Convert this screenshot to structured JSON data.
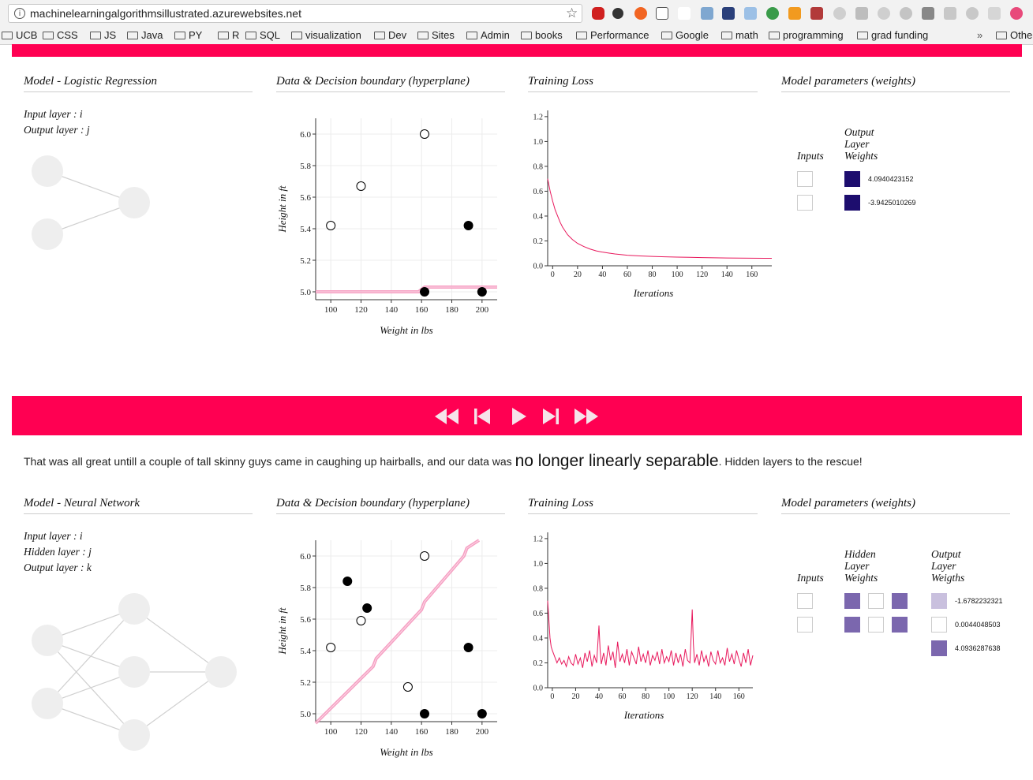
{
  "browser": {
    "url": "machinelearningalgorithmsillustrated.azurewebsites.net",
    "bookmarks": [
      "UCB",
      "CSS",
      "JS",
      "Java",
      "PY",
      "R",
      "SQL",
      "visualization",
      "Dev",
      "Sites",
      "Admin",
      "books",
      "Performance",
      "Google",
      "math",
      "programming",
      "grad funding"
    ],
    "bookmarks_overflow": "»",
    "other_bookmarks": "Other"
  },
  "section1": {
    "model_title": "Model - Logistic Regression",
    "boundary_title": "Data & Decision boundary (hyperplane)",
    "loss_title": "Training Loss",
    "params_title": "Model parameters (weights)",
    "layers": [
      "Input layer : i",
      "Output layer : j"
    ],
    "params": {
      "inputs_label": "Inputs",
      "output_label": [
        "Output",
        "Layer",
        "Weights"
      ],
      "weights": [
        "4.0940423152",
        "-3.9425010269"
      ]
    },
    "scatter_chart": {
      "type": "scatter",
      "xlabel": "Weight in lbs",
      "ylabel": "Height in ft",
      "xlim": [
        90,
        210
      ],
      "ylim": [
        4.95,
        6.1
      ],
      "x_ticks": [
        "100",
        "120",
        "140",
        "160",
        "180",
        "200"
      ],
      "y_ticks": [
        "5.0",
        "5.2",
        "5.4",
        "5.6",
        "5.8",
        "6.0"
      ],
      "points": [
        {
          "x": 100,
          "y": 5.42,
          "class": "open"
        },
        {
          "x": 120,
          "y": 5.67,
          "class": "open"
        },
        {
          "x": 162,
          "y": 6.0,
          "class": "open"
        },
        {
          "x": 191,
          "y": 5.42,
          "class": "filled"
        },
        {
          "x": 162,
          "y": 5.0,
          "class": "filled"
        },
        {
          "x": 200,
          "y": 5.0,
          "class": "filled"
        }
      ],
      "boundary": [
        [
          90,
          5.0
        ],
        [
          158,
          5.0
        ],
        [
          162,
          5.03
        ],
        [
          210,
          5.03
        ]
      ]
    },
    "loss_chart": {
      "type": "line",
      "xlabel": "Iterations",
      "xlim": [
        -4,
        176
      ],
      "ylim": [
        0,
        1.25
      ],
      "x_ticks": [
        "0",
        "20",
        "40",
        "60",
        "80",
        "100",
        "120",
        "140",
        "160"
      ],
      "y_ticks": [
        "0.0",
        "0.2",
        "0.4",
        "0.6",
        "0.8",
        "1.0",
        "1.2"
      ],
      "x": [
        -4,
        -2,
        0,
        2,
        4,
        6,
        8,
        10,
        12,
        14,
        16,
        18,
        20,
        25,
        30,
        35,
        40,
        45,
        50,
        60,
        70,
        80,
        90,
        100,
        110,
        120,
        130,
        140,
        150,
        160,
        170,
        176
      ],
      "y": [
        0.7,
        0.6,
        0.52,
        0.45,
        0.4,
        0.35,
        0.31,
        0.28,
        0.25,
        0.23,
        0.21,
        0.195,
        0.18,
        0.155,
        0.135,
        0.12,
        0.11,
        0.102,
        0.095,
        0.085,
        0.079,
        0.075,
        0.072,
        0.07,
        0.068,
        0.066,
        0.064,
        0.063,
        0.062,
        0.061,
        0.06,
        0.06
      ]
    }
  },
  "controls": {
    "rewind": "rewind",
    "step_back": "step-back",
    "play": "play",
    "step_forward": "step-forward",
    "fast_forward": "fast-forward"
  },
  "narrative": {
    "before": "That was all great untill a couple of tall skinny guys came in caughing up hairballs, and our data was ",
    "emphasis": "no longer linearly separable",
    "after": ". Hidden layers to the rescue!"
  },
  "section2": {
    "model_title": "Model - Neural Network",
    "boundary_title": "Data & Decision boundary (hyperplane)",
    "loss_title": "Training Loss",
    "params_title": "Model parameters (weights)",
    "layers": [
      "Input layer : i",
      "Hidden layer : j",
      "Output layer : k"
    ],
    "params": {
      "inputs_label": "Inputs",
      "hidden_label": [
        "Hidden",
        "Layer",
        "Weights"
      ],
      "output_label": [
        "Output",
        "Layer",
        "Weigths"
      ],
      "weights": [
        "-1.6782232321",
        "0.0044048503",
        "4.0936287638"
      ]
    },
    "scatter_chart": {
      "type": "scatter",
      "xlabel": "Weight in lbs",
      "ylabel": "Height in ft",
      "xlim": [
        90,
        210
      ],
      "ylim": [
        4.95,
        6.1
      ],
      "x_ticks": [
        "100",
        "120",
        "140",
        "160",
        "180",
        "200"
      ],
      "y_ticks": [
        "5.0",
        "5.2",
        "5.4",
        "5.6",
        "5.8",
        "6.0"
      ],
      "points": [
        {
          "x": 100,
          "y": 5.42,
          "class": "open"
        },
        {
          "x": 120,
          "y": 5.59,
          "class": "open"
        },
        {
          "x": 162,
          "y": 6.0,
          "class": "open"
        },
        {
          "x": 151,
          "y": 5.17,
          "class": "open"
        },
        {
          "x": 111,
          "y": 5.84,
          "class": "filled"
        },
        {
          "x": 124,
          "y": 5.67,
          "class": "filled"
        },
        {
          "x": 191,
          "y": 5.42,
          "class": "filled"
        },
        {
          "x": 162,
          "y": 5.0,
          "class": "filled"
        },
        {
          "x": 200,
          "y": 5.0,
          "class": "filled"
        }
      ],
      "boundary": [
        [
          90,
          4.94
        ],
        [
          128,
          5.3
        ],
        [
          130,
          5.35
        ],
        [
          160,
          5.66
        ],
        [
          162,
          5.71
        ],
        [
          188,
          6.0
        ],
        [
          190,
          6.05
        ],
        [
          198,
          6.1
        ]
      ]
    },
    "loss_chart": {
      "type": "line",
      "xlabel": "Iterations",
      "xlim": [
        -4,
        172
      ],
      "ylim": [
        0,
        1.25
      ],
      "x_ticks": [
        "0",
        "20",
        "40",
        "60",
        "80",
        "100",
        "120",
        "140",
        "160"
      ],
      "y_ticks": [
        "0.0",
        "0.2",
        "0.4",
        "0.6",
        "0.8",
        "1.0",
        "1.2"
      ],
      "x": [
        -4,
        -3,
        -2,
        -1,
        0,
        2,
        4,
        6,
        8,
        10,
        12,
        14,
        16,
        18,
        20,
        22,
        24,
        26,
        28,
        30,
        32,
        34,
        36,
        38,
        40,
        41,
        42,
        44,
        46,
        48,
        50,
        52,
        54,
        56,
        58,
        60,
        62,
        64,
        66,
        68,
        70,
        72,
        74,
        76,
        78,
        80,
        82,
        84,
        86,
        88,
        90,
        92,
        94,
        96,
        98,
        100,
        102,
        104,
        106,
        108,
        110,
        112,
        114,
        116,
        118,
        119,
        120,
        121,
        122,
        124,
        126,
        128,
        130,
        132,
        134,
        136,
        138,
        140,
        142,
        144,
        146,
        148,
        150,
        152,
        154,
        156,
        158,
        160,
        162,
        164,
        166,
        168,
        170,
        172
      ],
      "y": [
        0.7,
        0.55,
        0.4,
        0.33,
        0.3,
        0.25,
        0.2,
        0.24,
        0.19,
        0.22,
        0.17,
        0.25,
        0.2,
        0.18,
        0.27,
        0.19,
        0.24,
        0.16,
        0.28,
        0.21,
        0.3,
        0.17,
        0.26,
        0.2,
        0.5,
        0.3,
        0.19,
        0.28,
        0.18,
        0.34,
        0.22,
        0.29,
        0.16,
        0.37,
        0.21,
        0.27,
        0.2,
        0.31,
        0.18,
        0.29,
        0.24,
        0.19,
        0.33,
        0.21,
        0.27,
        0.2,
        0.3,
        0.18,
        0.26,
        0.22,
        0.29,
        0.19,
        0.31,
        0.2,
        0.25,
        0.21,
        0.3,
        0.18,
        0.28,
        0.2,
        0.27,
        0.17,
        0.31,
        0.22,
        0.2,
        0.4,
        0.63,
        0.35,
        0.2,
        0.27,
        0.18,
        0.3,
        0.21,
        0.26,
        0.17,
        0.29,
        0.22,
        0.19,
        0.3,
        0.2,
        0.24,
        0.18,
        0.32,
        0.21,
        0.27,
        0.19,
        0.3,
        0.23,
        0.17,
        0.28,
        0.2,
        0.31,
        0.18,
        0.26
      ]
    }
  },
  "colors": {
    "accent": "#ff0052",
    "loss_line": "#e8185c",
    "boundary": "#f48fb8",
    "weight_dark": "#1d0d6e",
    "weight_mid": "#7b67ae",
    "weight_light": "#c9c0de",
    "node": "#eeeeee"
  }
}
